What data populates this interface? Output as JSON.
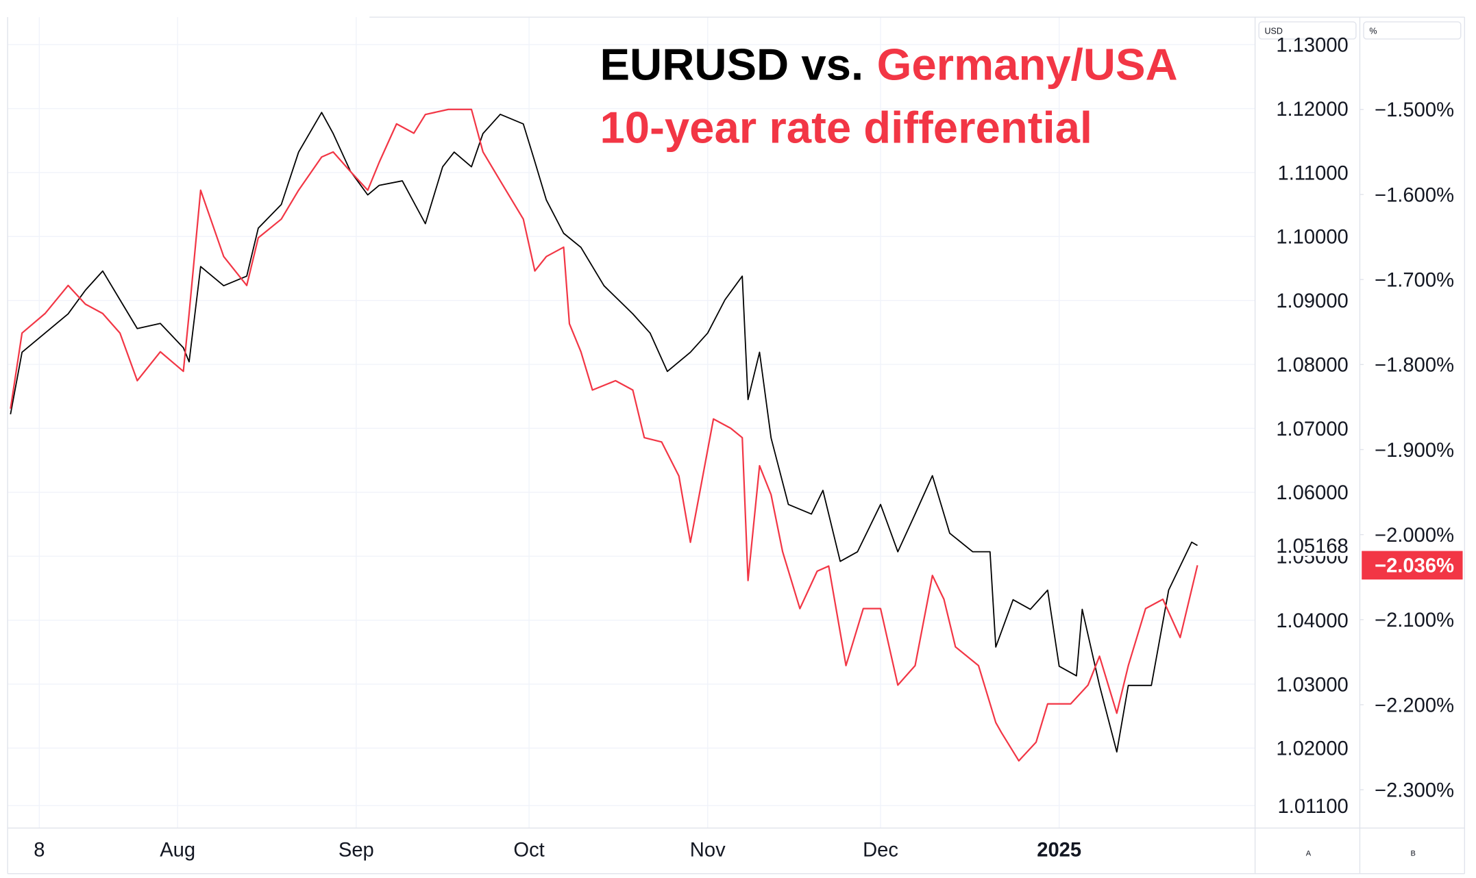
{
  "chart_data": {
    "type": "line",
    "title": "EURUSD vs.",
    "title_highlight": "Germany/USA",
    "subtitle": "10-year rate differential",
    "y_label": "USD",
    "y2_label": "%",
    "scale_buttons": [
      "A",
      "B"
    ],
    "xlim": [
      -5.5,
      211
    ],
    "xticks": [
      {
        "value": 0,
        "label": "8"
      },
      {
        "value": 24,
        "label": "Aug"
      },
      {
        "value": 55,
        "label": "Sep"
      },
      {
        "value": 85,
        "label": "Oct"
      },
      {
        "value": 116,
        "label": "Nov"
      },
      {
        "value": 146,
        "label": "Dec"
      },
      {
        "value": 177,
        "label": "2025"
      }
    ],
    "ylim": [
      1.0075,
      1.1343
    ],
    "yticks": [
      {
        "value": 1.13,
        "label": "1.13000"
      },
      {
        "value": 1.12,
        "label": "1.12000"
      },
      {
        "value": 1.11,
        "label": "1.11000"
      },
      {
        "value": 1.1,
        "label": "1.10000"
      },
      {
        "value": 1.09,
        "label": "1.09000"
      },
      {
        "value": 1.08,
        "label": "1.08000"
      },
      {
        "value": 1.07,
        "label": "1.07000"
      },
      {
        "value": 1.06,
        "label": "1.06000"
      },
      {
        "value": 1.05,
        "label": "1.05000"
      },
      {
        "value": 1.04,
        "label": "1.04000"
      },
      {
        "value": 1.03,
        "label": "1.03000"
      },
      {
        "value": 1.02,
        "label": "1.02000"
      },
      {
        "value": 1.011,
        "label": "1.01100"
      }
    ],
    "y2lim": [
      -2.345,
      -1.3915
    ],
    "y2ticks": [
      {
        "value": -1.5,
        "label": "−1.500%"
      },
      {
        "value": -1.6,
        "label": "−1.600%"
      },
      {
        "value": -1.7,
        "label": "−1.700%"
      },
      {
        "value": -1.8,
        "label": "−1.800%"
      },
      {
        "value": -1.9,
        "label": "−1.900%"
      },
      {
        "value": -2.0,
        "label": "−2.000%"
      },
      {
        "value": -2.1,
        "label": "−2.100%"
      },
      {
        "value": -2.2,
        "label": "−2.200%"
      },
      {
        "value": -2.3,
        "label": "−2.300%"
      }
    ],
    "grid": true,
    "series": [
      {
        "name": "EURUSD",
        "color": "#000000",
        "axis": "y",
        "x": [
          -5,
          -3,
          1,
          5,
          8,
          11,
          14,
          17,
          21,
          25,
          26,
          28,
          32,
          36,
          38,
          42,
          45,
          49,
          51,
          54,
          57,
          59,
          63,
          67,
          70,
          72,
          75,
          77,
          80,
          84,
          86,
          88,
          91,
          94,
          98,
          103,
          106,
          109,
          113,
          116,
          119,
          122,
          123,
          125,
          127,
          130,
          134,
          136,
          139,
          142,
          146,
          149,
          152,
          155,
          158,
          162,
          165,
          166,
          169,
          172,
          175,
          177,
          180,
          181,
          184,
          187,
          189,
          193,
          196,
          200,
          201
        ],
        "values": [
          1.0722,
          1.0819,
          1.0849,
          1.0879,
          1.0916,
          1.0946,
          1.0901,
          1.0856,
          1.0864,
          1.0826,
          1.0804,
          1.0953,
          1.0923,
          1.0938,
          1.1013,
          1.105,
          1.1132,
          1.1194,
          1.1161,
          1.1102,
          1.1065,
          1.108,
          1.1087,
          1.102,
          1.1109,
          1.1132,
          1.1109,
          1.1161,
          1.1191,
          1.1176,
          1.1117,
          1.1057,
          1.1005,
          1.0983,
          1.0923,
          1.0879,
          1.0849,
          1.0789,
          1.0819,
          1.0849,
          1.0901,
          1.0938,
          1.0745,
          1.0819,
          1.0685,
          1.0581,
          1.0566,
          1.0603,
          1.0492,
          1.0507,
          1.0581,
          1.0507,
          1.0566,
          1.0626,
          1.0536,
          1.0507,
          1.0507,
          1.0358,
          1.0432,
          1.0417,
          1.0447,
          1.0328,
          1.0313,
          1.0417,
          1.0298,
          1.0194,
          1.0298,
          1.0298,
          1.0447,
          1.0522,
          1.05168
        ]
      },
      {
        "name": "Germany/USA 10-year rate differential",
        "color": "#f23645",
        "axis": "y2",
        "x": [
          -5,
          -3,
          1,
          5,
          8,
          11,
          14,
          17,
          21,
          25,
          26,
          28,
          32,
          36,
          38,
          42,
          45,
          49,
          51,
          54,
          57,
          59,
          62,
          65,
          67,
          71,
          75,
          77,
          80,
          84,
          86,
          88,
          91,
          92,
          94,
          96,
          100,
          103,
          105,
          108,
          111,
          113,
          117,
          120,
          122,
          123,
          125,
          127,
          129,
          132,
          135,
          137,
          140,
          143,
          146,
          149,
          152,
          155,
          157,
          159,
          163,
          166,
          167,
          170,
          173,
          175,
          179,
          182,
          184,
          187,
          189,
          192,
          195,
          198,
          201
        ],
        "values": [
          -1.852,
          -1.763,
          -1.74,
          -1.707,
          -1.729,
          -1.74,
          -1.763,
          -1.819,
          -1.785,
          -1.808,
          -1.74,
          -1.595,
          -1.673,
          -1.707,
          -1.651,
          -1.629,
          -1.595,
          -1.556,
          -1.55,
          -1.573,
          -1.595,
          -1.562,
          -1.517,
          -1.528,
          -1.506,
          -1.5,
          -1.5,
          -1.55,
          -1.584,
          -1.629,
          -1.69,
          -1.673,
          -1.662,
          -1.752,
          -1.785,
          -1.83,
          -1.819,
          -1.83,
          -1.886,
          -1.891,
          -1.931,
          -2.009,
          -1.864,
          -1.875,
          -1.886,
          -2.054,
          -1.919,
          -1.953,
          -2.02,
          -2.087,
          -2.043,
          -2.037,
          -2.154,
          -2.087,
          -2.087,
          -2.177,
          -2.154,
          -2.048,
          -2.076,
          -2.132,
          -2.154,
          -2.221,
          -2.233,
          -2.266,
          -2.244,
          -2.199,
          -2.199,
          -2.177,
          -2.143,
          -2.21,
          -2.154,
          -2.087,
          -2.076,
          -2.121,
          -2.036
        ],
        "last_label": "−2.036%"
      }
    ]
  }
}
